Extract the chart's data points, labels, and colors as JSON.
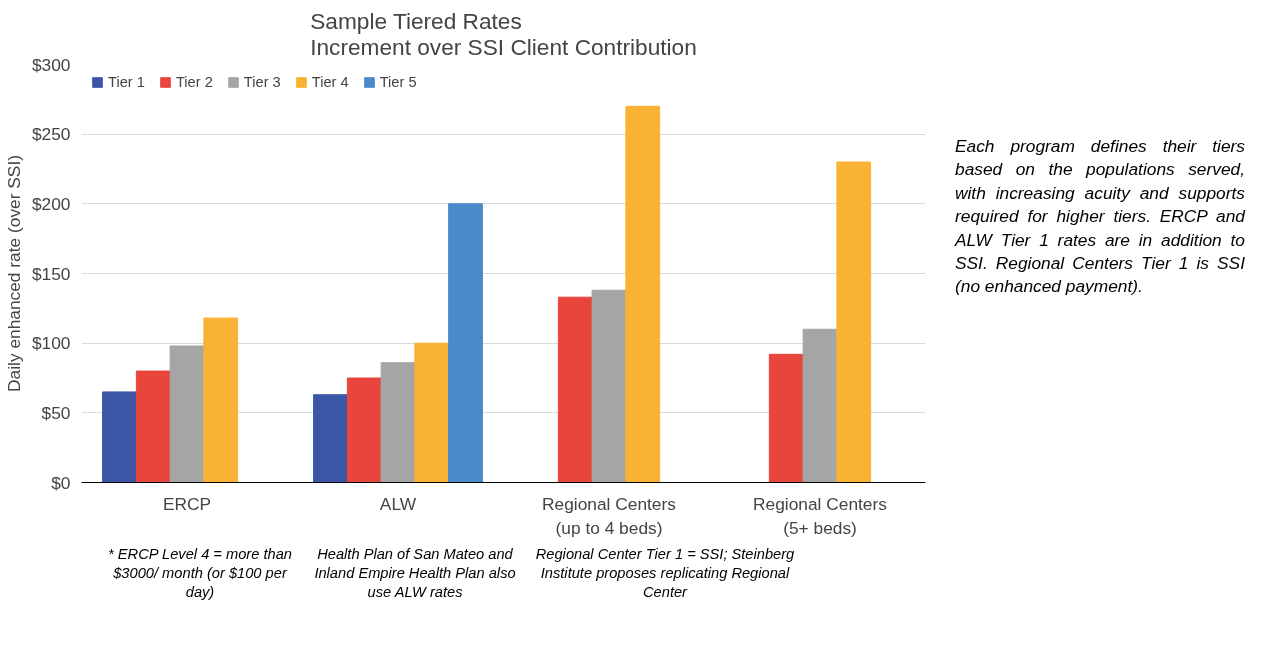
{
  "chart_data": {
    "type": "bar",
    "title": "Sample Tiered Rates",
    "subtitle": "Increment over SSI Client Contribution",
    "ylabel": "Daily enhanced rate (over SSI)",
    "categories": [
      "ERCP",
      "ALW",
      "Regional Centers\n(up to 4 beds)",
      "Regional Centers\n(5+ beds)"
    ],
    "series": [
      {
        "name": "Tier 1",
        "color": "#3b56a6",
        "values": [
          65,
          63,
          null,
          null
        ]
      },
      {
        "name": "Tier 2",
        "color": "#e8453c",
        "values": [
          80,
          75,
          133,
          92
        ]
      },
      {
        "name": "Tier 3",
        "color": "#a5a5a5",
        "values": [
          98,
          86,
          138,
          110
        ]
      },
      {
        "name": "Tier 4",
        "color": "#f9b233",
        "values": [
          118,
          100,
          270,
          230
        ]
      },
      {
        "name": "Tier 5",
        "color": "#4a8ac9",
        "values": [
          null,
          200,
          null,
          null
        ]
      }
    ],
    "ylim": [
      0,
      300
    ],
    "yticks": [
      {
        "value": 0,
        "label": "$0"
      },
      {
        "value": 50,
        "label": "$50"
      },
      {
        "value": 100,
        "label": "$100"
      },
      {
        "value": 150,
        "label": "$150"
      },
      {
        "value": 200,
        "label": "$200"
      },
      {
        "value": 250,
        "label": "$250"
      },
      {
        "value": 300,
        "label": "$300"
      }
    ],
    "grid": "y",
    "legend": "top left",
    "annotations": [
      "Each program defines their tiers based on the populations served, with increasing acuity and supports required for higher tiers.  ERCP and ALW Tier 1 rates are in addition to SSI. Regional Centers Tier 1 is SSI (no enhanced payment).",
      "* ERCP Level 4 = more than $3000/ month (or $100 per day)",
      "Health Plan of San Mateo and Inland Empire Health Plan also use ALW rates",
      "Regional Center Tier 1 = SSI; Steinberg Institute proposes replicating Regional Center"
    ]
  }
}
